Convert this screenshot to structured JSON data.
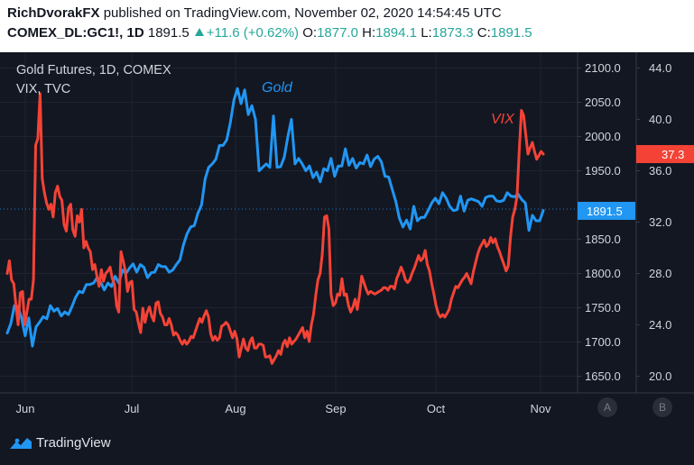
{
  "header": {
    "publisher": "RichDvorakFX",
    "published_text": "published on TradingView.com, November 02, 2020 14:54:45 UTC",
    "symbol": "COMEX_DL:GC1!, 1D",
    "last": "1891.5",
    "change": "+11.6 (+0.62%)",
    "o_label": "O:",
    "o_value": "1877.0",
    "h_label": "H:",
    "h_value": "1894.1",
    "l_label": "L:",
    "l_value": "1873.3",
    "c_label": "C:",
    "c_value": "1891.5"
  },
  "legend": {
    "gold_title": "Gold Futures, 1D, COMEX",
    "vix_title": "VIX, TVC"
  },
  "footer": {
    "brand": "TradingView"
  },
  "axis_buttons": {
    "left": "A",
    "right": "B"
  },
  "colors": {
    "gold": "#2196f3",
    "vix": "#f44336",
    "background": "#131722",
    "header_bg": "#ffffff"
  },
  "chart_data": {
    "type": "line",
    "title": "Gold Futures, 1D, COMEX",
    "x_tick_labels": [
      "Jun",
      "Jul",
      "Aug",
      "Sep",
      "Oct",
      "Nov"
    ],
    "annotations": {
      "gold_label": "Gold",
      "vix_label": "VIX"
    },
    "gold_axis": {
      "ticks": [
        "2100.0",
        "2050.0",
        "2000.0",
        "1950.0",
        "1850.0",
        "1800.0",
        "1750.0",
        "1700.0",
        "1650.0"
      ],
      "range": [
        1630,
        2120
      ],
      "last_value": "1891.5",
      "last": 1891.5
    },
    "vix_axis": {
      "ticks": [
        "44.0",
        "40.0",
        "36.0",
        "32.0",
        "28.0",
        "24.0",
        "20.0"
      ],
      "range": [
        18.1,
        46.1
      ],
      "last_value": "37.3",
      "last": 37.3
    },
    "series": [
      {
        "name": "Gold",
        "axis": "left",
        "values": [
          1713,
          1727,
          1753,
          1752,
          1735,
          1709,
          1735,
          1694,
          1722,
          1729,
          1737,
          1734,
          1753,
          1745,
          1749,
          1738,
          1744,
          1740,
          1752,
          1765,
          1774,
          1772,
          1784,
          1784,
          1786,
          1794,
          1787,
          1776,
          1786,
          1781,
          1796,
          1786,
          1805,
          1800,
          1808,
          1814,
          1802,
          1813,
          1809,
          1794,
          1801,
          1802,
          1813,
          1810,
          1810,
          1802,
          1805,
          1813,
          1820,
          1842,
          1858,
          1868,
          1870,
          1888,
          1900,
          1938,
          1955,
          1960,
          1967,
          1987,
          1987,
          1995,
          2020,
          2053,
          2070,
          2048,
          2068,
          2032,
          2045,
          2025,
          1950,
          1955,
          1960,
          1955,
          2030,
          1955,
          1956,
          1970,
          2000,
          2025,
          1960,
          1968,
          1960,
          1950,
          1957,
          1940,
          1948,
          1934,
          1953,
          1950,
          1968,
          1942,
          1957,
          1957,
          1982,
          1958,
          1968,
          1954,
          1962,
          1960,
          1973,
          1956,
          1967,
          1971,
          1963,
          1942,
          1941,
          1923,
          1905,
          1881,
          1868,
          1878,
          1865,
          1898,
          1877,
          1882,
          1882,
          1892,
          1903,
          1910,
          1902,
          1918,
          1910,
          1898,
          1892,
          1893,
          1913,
          1891,
          1907,
          1909,
          1907,
          1905,
          1898,
          1911,
          1913,
          1913,
          1906,
          1905,
          1907,
          1918,
          1913,
          1912,
          1916,
          1908,
          1903,
          1863,
          1885,
          1877,
          1877,
          1892
        ]
      },
      {
        "name": "VIX",
        "axis": "right",
        "values": [
          28.0,
          29.0,
          27.5,
          27.2,
          25.5,
          24.0,
          26.5,
          26.6,
          24.0,
          25.0,
          26.0,
          26.0,
          27.5,
          38.0,
          38.5,
          42.0,
          35.4,
          34.3,
          33.5,
          33.0,
          33.4,
          32.4,
          34.3,
          34.8,
          34.0,
          33.7,
          31.8,
          31.3,
          33.1,
          33.4,
          31.4,
          30.9,
          32.5,
          32.0,
          33.0,
          30.0,
          30.5,
          30.0,
          29.7,
          28.3,
          28.7,
          27.8,
          27.0,
          28.3,
          27.4,
          28.0,
          28.2,
          28.5,
          27.6,
          27.2,
          25.5,
          25.0,
          29.7,
          29.0,
          28.2,
          26.6,
          27.3,
          27.4,
          25.2,
          25.0,
          24.1,
          23.4,
          25.3,
          24.2,
          25.0,
          25.4,
          24.7,
          24.3,
          25.7,
          25.8,
          24.9,
          24.6,
          24.0,
          24.0,
          24.5,
          24.0,
          23.2,
          23.4,
          23.2,
          22.8,
          22.5,
          22.8,
          22.5,
          22.7,
          23.1,
          23.0,
          23.5,
          24.0,
          24.5,
          24.2,
          24.7,
          25.1,
          24.6,
          23.3,
          22.8,
          23.1,
          22.8,
          23.0,
          23.9,
          24.0,
          24.2,
          24.0,
          23.5,
          23.0,
          23.5,
          22.9,
          21.5,
          22.2,
          22.9,
          22.2,
          22.0,
          22.7,
          23.0,
          22.2,
          22.2,
          22.5,
          22.5,
          22.4,
          21.5,
          21.5,
          21.6,
          21.0,
          21.3,
          21.6,
          22.0,
          21.7,
          22.5,
          22.8,
          22.3,
          23.0,
          22.5,
          22.7,
          22.9,
          23.2,
          23.5,
          23.8,
          23.0,
          23.5,
          22.7,
          24.0,
          24.8,
          26.3,
          27.5,
          28.0,
          29.5,
          32.4,
          32.5,
          31.5,
          26.4,
          25.5,
          25.7,
          26.4,
          26.3,
          27.6,
          26.3,
          26.4,
          25.5,
          25.0,
          25.4,
          26.0,
          25.2,
          26.3,
          27.8,
          27.3,
          26.8,
          26.4,
          26.6,
          26.5,
          26.4,
          26.5,
          26.6,
          26.7,
          26.9,
          26.9,
          26.7,
          27.0,
          27.0,
          26.8,
          27.6,
          28.0,
          28.5,
          28.1,
          27.5,
          27.3,
          27.5,
          28.0,
          28.4,
          28.9,
          29.4,
          29.0,
          29.2,
          29.8,
          28.7,
          28.2,
          27.2,
          26.4,
          25.5,
          24.9,
          24.6,
          24.8,
          24.6,
          24.9,
          25.2,
          26.0,
          26.5,
          27.0,
          26.9,
          27.2,
          27.5,
          27.7,
          28.0,
          27.6,
          27.2,
          28.1,
          28.8,
          29.5,
          30.0,
          30.3,
          30.6,
          30.1,
          30.3,
          30.8,
          30.4,
          30.7,
          30.1,
          29.7,
          29.2,
          28.7,
          28.2,
          28.6,
          30.8,
          32.4,
          33.0,
          34.0,
          37.5,
          40.7,
          40.3,
          38.8,
          37.3,
          37.8,
          38.2,
          37.5,
          36.9,
          37.2,
          37.5,
          37.3
        ]
      }
    ]
  }
}
